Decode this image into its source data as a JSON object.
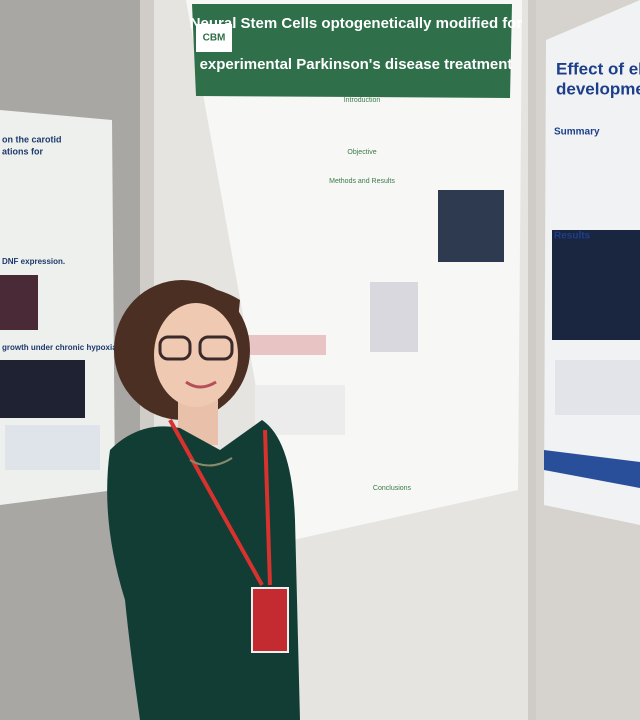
{
  "posters": {
    "left": {
      "headings": [
        "on the carotid",
        "ations for",
        "DNF expression.",
        "growth under chronic hypoxia."
      ]
    },
    "center": {
      "logo": "CBM",
      "title_lines": [
        "Neural Stem Cells optogenetically modified for",
        "experimental Parkinson's disease treatment"
      ],
      "sections": [
        "Introduction",
        "Objective",
        "Methods and Results",
        "Conclusions"
      ]
    },
    "right": {
      "title_lines": [
        "Effect of elect",
        "development c"
      ],
      "sections": [
        "Summary",
        "Results"
      ]
    }
  }
}
